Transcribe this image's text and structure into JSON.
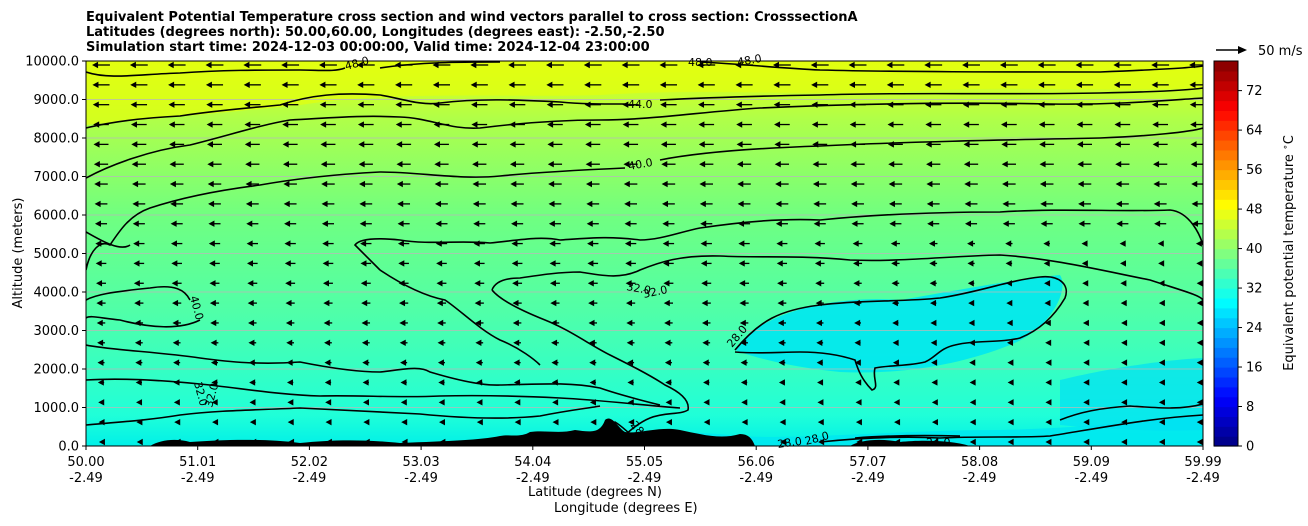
{
  "chart_data": {
    "type": "contourf",
    "title_lines": [
      "Equivalent Potential Temperature cross section and wind vectors parallel to cross section: CrosssectionA",
      "Latitudes (degrees north): 50.00,60.00, Longitudes (degrees east): -2.50,-2.50",
      "Simulation start time: 2024-12-03 00:00:00, Valid time: 2024-12-04 23:00:00"
    ],
    "ylabel": "Altitude (meters)",
    "xlabel_lat": "Latitude (degrees N)",
    "xlabel_lon": "Longitude (degrees E)",
    "ylim": [
      0,
      10000
    ],
    "yticks": [
      0,
      1000,
      2000,
      3000,
      4000,
      5000,
      6000,
      7000,
      8000,
      9000,
      10000
    ],
    "ytick_labels": [
      "0.0",
      "1000.0",
      "2000.0",
      "3000.0",
      "4000.0",
      "5000.0",
      "6000.0",
      "7000.0",
      "8000.0",
      "9000.0",
      "10000.0"
    ],
    "xlim": [
      50.0,
      59.99
    ],
    "xticks_lat": [
      "50.00",
      "51.01",
      "52.02",
      "53.03",
      "54.04",
      "55.05",
      "56.06",
      "57.07",
      "58.08",
      "59.09",
      "59.99"
    ],
    "xticks_lon": [
      "-2.49",
      "-2.49",
      "-2.49",
      "-2.49",
      "-2.49",
      "-2.49",
      "-2.49",
      "-2.49",
      "-2.49",
      "-2.49",
      "-2.49"
    ],
    "colorbar": {
      "label": "Equivalent potential temperature $^\\circ$C",
      "range": [
        0,
        78
      ],
      "ticks": [
        0,
        8,
        16,
        24,
        32,
        40,
        48,
        56,
        64,
        72
      ],
      "tick_labels": [
        "0",
        "8",
        "16",
        "24",
        "32",
        "40",
        "48",
        "56",
        "64",
        "72"
      ],
      "colormap": "jet"
    },
    "quiver_key_label": "50 m/s",
    "wind_direction": "left (southward)",
    "contour_levels": [
      "24.0",
      "28.0",
      "32.0",
      "36.0",
      "40.0",
      "44.0",
      "48.0"
    ],
    "contour_labels": [
      {
        "text": "48.0",
        "lat": 52.6,
        "alt": 9750
      },
      {
        "text": "48.0",
        "lat": 55.6,
        "alt": 9900
      },
      {
        "text": "48.0",
        "lat": 56.0,
        "alt": 9900
      },
      {
        "text": "44.0",
        "lat": 55.1,
        "alt": 8900
      },
      {
        "text": "40.0",
        "lat": 55.1,
        "alt": 7250
      },
      {
        "text": "40.0",
        "lat": 51.1,
        "alt": 3700
      },
      {
        "text": "32.0",
        "lat": 54.9,
        "alt": 4100
      },
      {
        "text": "32.0",
        "lat": 55.2,
        "alt": 3900
      },
      {
        "text": "28.0",
        "lat": 56.0,
        "alt": 2900
      },
      {
        "text": "32.0",
        "lat": 51.1,
        "alt": 1300
      },
      {
        "text": "32.0",
        "lat": 51.3,
        "alt": 1300
      },
      {
        "text": "28",
        "lat": 54.9,
        "alt": 400
      },
      {
        "text": "28.0",
        "lat": 56.2,
        "alt": 50
      },
      {
        "text": "28.0",
        "lat": 56.5,
        "alt": 150
      },
      {
        "text": "24.0",
        "lat": 57.6,
        "alt": 50
      }
    ],
    "gridlines": "horizontal"
  }
}
